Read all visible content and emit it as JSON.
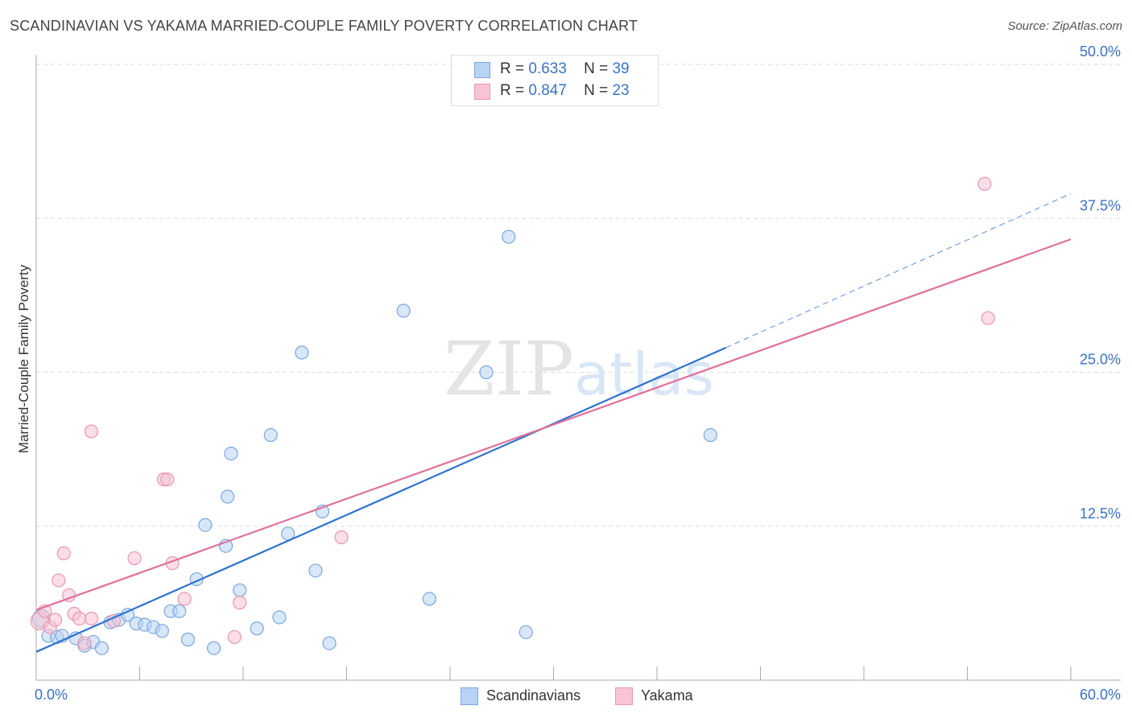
{
  "header": {
    "title": "SCANDINAVIAN VS YAKAMA MARRIED-COUPLE FAMILY POVERTY CORRELATION CHART",
    "source": "Source: ZipAtlas.com"
  },
  "legend_top": {
    "rows": [
      {
        "r_label": "R =",
        "r_value": "0.633",
        "n_label": "N =",
        "n_value": "39"
      },
      {
        "r_label": "R =",
        "r_value": "0.847",
        "n_label": "N =",
        "n_value": "23"
      }
    ]
  },
  "watermark": {
    "zip": "ZIP",
    "atlas": "atlas"
  },
  "colors": {
    "scandinavian_fill": "#b8d3f4",
    "scandinavian_stroke": "#7ba7e0",
    "scandinavian_line": "#2f73d0",
    "yakama_fill": "#f8c3d3",
    "yakama_stroke": "#ea97b1",
    "yakama_line": "#e07099",
    "axis_label": "#3a72c8",
    "grid": "#dddddd"
  },
  "chart_data": {
    "type": "scatter",
    "title": "SCANDINAVIAN VS YAKAMA MARRIED-COUPLE FAMILY POVERTY CORRELATION CHART",
    "xlabel": "",
    "ylabel": "Married-Couple Family Poverty",
    "xlim": [
      0,
      60
    ],
    "ylim": [
      0,
      50
    ],
    "x_tick_labels": [
      "0.0%",
      "60.0%"
    ],
    "y_ticks": [
      12.5,
      25.0,
      37.5,
      50.0
    ],
    "y_tick_labels": [
      "12.5%",
      "25.0%",
      "37.5%",
      "50.0%"
    ],
    "grid": true,
    "legend": [
      "Scandinavians",
      "Yakama"
    ],
    "series": [
      {
        "name": "Scandinavians",
        "r": 0.633,
        "n": 39,
        "points": [
          [
            0.3,
            5.0
          ],
          [
            0.7,
            3.6
          ],
          [
            1.2,
            3.5
          ],
          [
            1.5,
            3.6
          ],
          [
            2.3,
            3.4
          ],
          [
            2.8,
            2.8
          ],
          [
            3.3,
            3.1
          ],
          [
            3.8,
            2.6
          ],
          [
            4.3,
            4.7
          ],
          [
            4.8,
            4.9
          ],
          [
            5.3,
            5.3
          ],
          [
            5.8,
            4.6
          ],
          [
            6.3,
            4.5
          ],
          [
            6.8,
            4.3
          ],
          [
            7.3,
            4.0
          ],
          [
            7.8,
            5.6
          ],
          [
            8.3,
            5.6
          ],
          [
            8.8,
            3.3
          ],
          [
            9.3,
            8.2
          ],
          [
            9.8,
            12.6
          ],
          [
            10.3,
            2.6
          ],
          [
            11.1,
            14.9
          ],
          [
            11.3,
            18.4
          ],
          [
            11.0,
            10.9
          ],
          [
            11.8,
            7.3
          ],
          [
            12.8,
            4.2
          ],
          [
            13.6,
            19.9
          ],
          [
            14.1,
            5.1
          ],
          [
            14.6,
            11.9
          ],
          [
            15.4,
            26.6
          ],
          [
            16.2,
            8.9
          ],
          [
            16.6,
            13.7
          ],
          [
            17.0,
            3.0
          ],
          [
            21.3,
            30.0
          ],
          [
            22.8,
            6.6
          ],
          [
            26.1,
            25.0
          ],
          [
            27.4,
            36.0
          ],
          [
            28.4,
            3.9
          ],
          [
            39.1,
            19.9
          ]
        ],
        "trend": {
          "x0": 0,
          "y0": 2.3,
          "x1": 40.0,
          "y1": 27.0,
          "dashed_x1": 60.0,
          "dashed_y1": 39.5
        }
      },
      {
        "name": "Yakama",
        "r": 0.847,
        "n": 23,
        "points": [
          [
            0.2,
            4.8
          ],
          [
            0.5,
            5.6
          ],
          [
            0.8,
            4.3
          ],
          [
            1.1,
            4.9
          ],
          [
            1.3,
            8.1
          ],
          [
            1.6,
            10.3
          ],
          [
            1.9,
            6.9
          ],
          [
            2.2,
            5.4
          ],
          [
            2.5,
            5.0
          ],
          [
            2.8,
            3.0
          ],
          [
            3.2,
            5.0
          ],
          [
            3.2,
            20.2
          ],
          [
            4.5,
            4.8
          ],
          [
            5.7,
            9.9
          ],
          [
            7.4,
            16.3
          ],
          [
            7.6,
            16.3
          ],
          [
            7.9,
            9.5
          ],
          [
            8.6,
            6.6
          ],
          [
            11.5,
            3.5
          ],
          [
            11.8,
            6.3
          ],
          [
            17.7,
            11.6
          ],
          [
            55.0,
            40.3
          ],
          [
            55.2,
            29.4
          ]
        ],
        "trend": {
          "x0": 0,
          "y0": 5.7,
          "x1": 60.0,
          "y1": 35.8
        }
      }
    ]
  },
  "legend_bottom": {
    "items": [
      {
        "label": "Scandinavians"
      },
      {
        "label": "Yakama"
      }
    ]
  }
}
